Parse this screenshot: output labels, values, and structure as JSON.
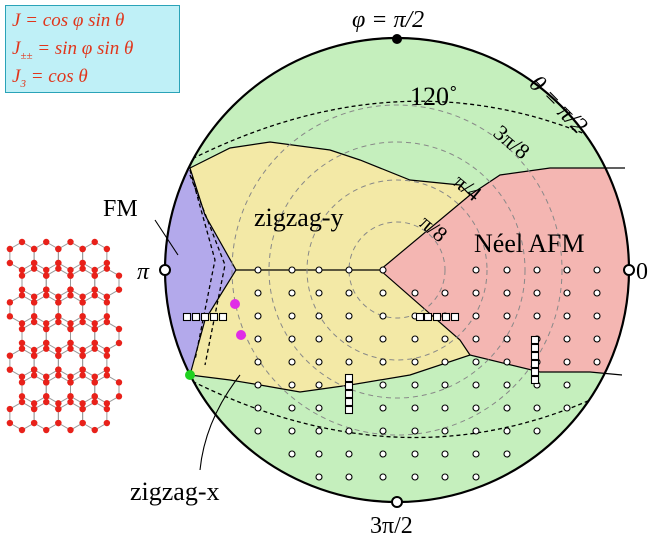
{
  "formulas": [
    "J = cos φ sin θ",
    "J± = sin φ sin θ",
    "J3 = cos θ"
  ],
  "labels": {
    "phi_top": "φ = π/2",
    "theta_label": "θ = π/2",
    "deg_120": "120˚",
    "pi_left": "π",
    "zero_right": "0",
    "three_pi_2": "3π/2",
    "fm": "FM",
    "zigzag_y": "zigzag-y",
    "zigzag_x": "zigzag-x",
    "neel": "Néel AFM",
    "three_pi_8": "3π/8",
    "pi_4": "π/4",
    "pi_8": "π/8"
  },
  "colors": {
    "green": "#c5efbd",
    "yellow": "#f3e9a6",
    "pink": "#f4b6b2",
    "purple": "#b3a9eb",
    "formula_red": "#e0361c",
    "formula_bg": "#bff0f7",
    "lattice_node": "#e8211a",
    "magenta": "#e02ce6",
    "bright_green": "#1fd11f"
  },
  "icons": [
    "honeycomb-lattice-icon"
  ]
}
